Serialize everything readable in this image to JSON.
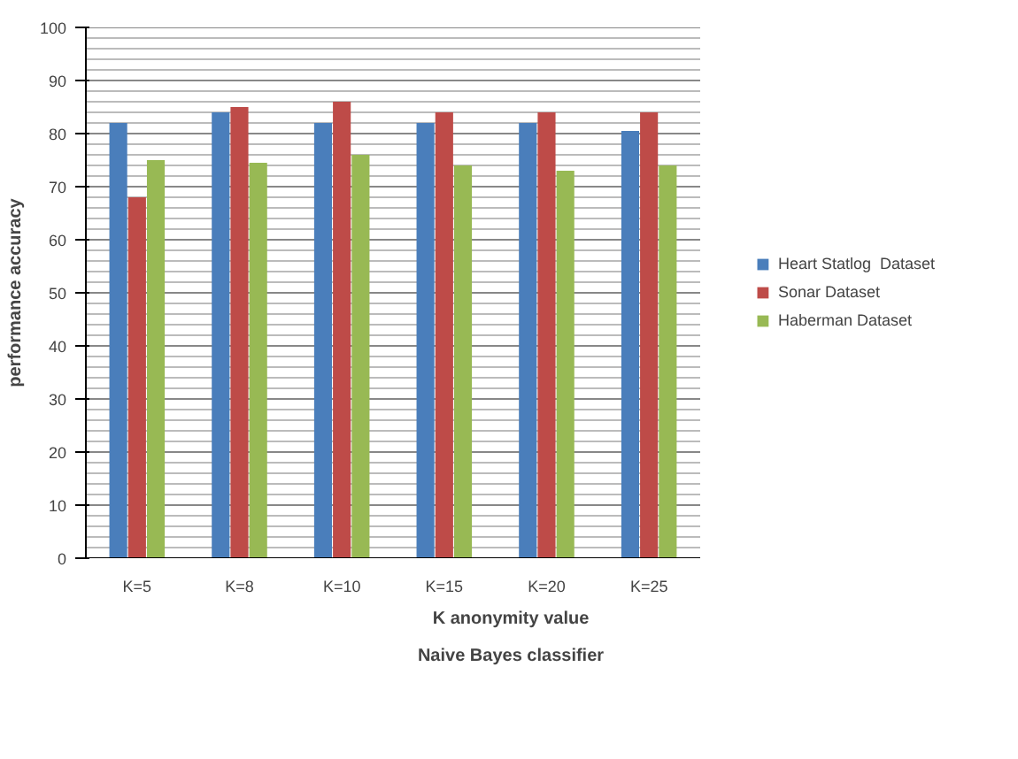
{
  "chart_data": {
    "type": "bar",
    "xlabel": "K anonymity value",
    "ylabel": "performance accuracy",
    "annotations": [
      "Naive Bayes classifier"
    ],
    "categories": [
      "K=5",
      "K=8",
      "K=10",
      "K=15",
      "K=20",
      "K=25"
    ],
    "series": [
      {
        "name": "Heart Statlog  Dataset",
        "color": "#4a7ebb",
        "values": [
          82,
          84,
          82,
          82,
          82,
          80.5
        ]
      },
      {
        "name": "Sonar Dataset",
        "color": "#be4b48",
        "values": [
          68,
          85,
          86,
          84,
          84,
          84
        ]
      },
      {
        "name": "Haberman Dataset",
        "color": "#98b954",
        "values": [
          75,
          74.5,
          76,
          74,
          73,
          74
        ]
      }
    ],
    "ylim": [
      0,
      100
    ],
    "yticks": [
      0,
      10,
      20,
      30,
      40,
      50,
      60,
      70,
      80,
      90,
      100
    ],
    "grid": "y",
    "legend": "right"
  }
}
